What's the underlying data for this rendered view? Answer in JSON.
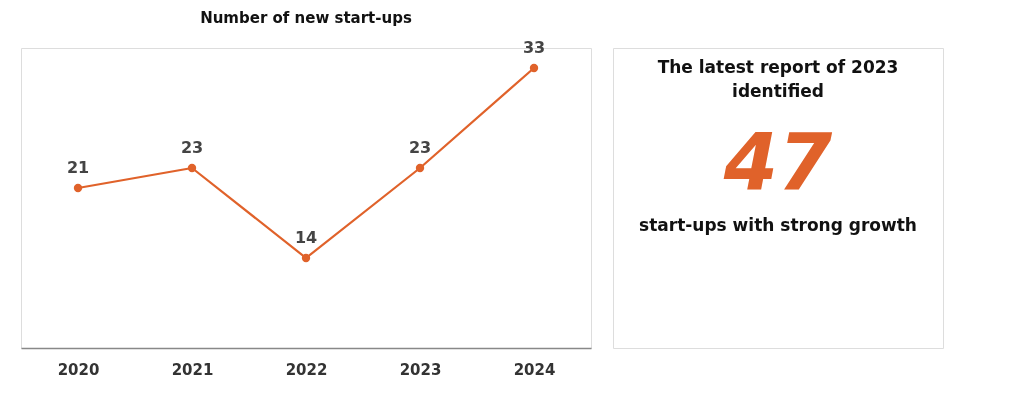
{
  "chart_data": [
    {
      "type": "line",
      "title": "Number of new start-ups",
      "categories": [
        "2020",
        "2021",
        "2022",
        "2023",
        "2024"
      ],
      "series": [
        {
          "color": "#e0622a",
          "values": [
            21,
            23,
            14,
            23,
            33
          ]
        }
      ],
      "ylim": [
        5,
        35
      ],
      "tick_labels": "x",
      "marker": "circle",
      "line_style": "solid",
      "data_labels": true
    },
    {
      "type": "other",
      "title": "The latest report of 2023 identified",
      "color": "#e0622a",
      "annotations": [
        "47",
        "start-ups with strong growth"
      ]
    }
  ]
}
